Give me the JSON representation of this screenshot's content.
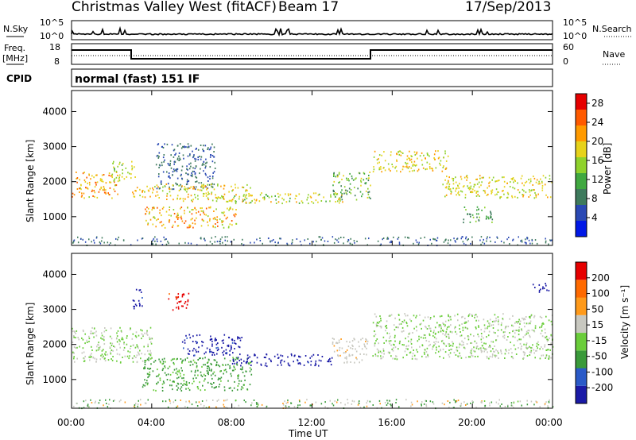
{
  "header": {
    "station": "Christmas Valley West (fitACF)",
    "beam": "Beam 17",
    "date": "17/Sep/2013"
  },
  "top_panels": {
    "nsky_label": "N.Sky",
    "nsky_ticks": [
      "10^5",
      "10^0"
    ],
    "nsearch_label": "N.Search",
    "nsearch_ticks": [
      "10^5",
      "10^0"
    ],
    "freq_label": "Freq.",
    "freq_unit": "[MHz]",
    "freq_ticks": [
      "18",
      "8"
    ],
    "nave_label": "Nave",
    "nave_ticks": [
      "60",
      "0"
    ],
    "cpid_label": "CPID",
    "cpid_value": "normal (fast) 151 IF"
  },
  "xaxis": {
    "label": "Time UT",
    "ticks": [
      "00:00",
      "04:00",
      "08:00",
      "12:00",
      "16:00",
      "20:00",
      "00:00"
    ]
  },
  "chart_data": [
    {
      "type": "heatmap",
      "title": "",
      "xlabel": "Time UT",
      "ylabel": "Slant Range [km]",
      "xlim": [
        0,
        24
      ],
      "ylim": [
        180,
        4600
      ],
      "yticks": [
        "1000",
        "2000",
        "3000",
        "4000"
      ],
      "colorbar": {
        "label": "Power [dB]",
        "ticks": [
          "4",
          "8",
          "12",
          "16",
          "20",
          "24",
          "28"
        ],
        "colors": [
          "#0018e6",
          "#2a49b4",
          "#3e7a5c",
          "#40a840",
          "#8fd22c",
          "#e6d21a",
          "#ff9a00",
          "#ff5a00",
          "#e60000"
        ],
        "range": [
          0,
          30
        ]
      },
      "bands": [
        {
          "t0": 0.0,
          "t1": 2.3,
          "r0": 1550,
          "r1": 2300,
          "v0": 16,
          "v1": 26
        },
        {
          "t0": 2.0,
          "t1": 3.2,
          "r0": 2050,
          "r1": 2600,
          "v0": 12,
          "v1": 20
        },
        {
          "t0": 3.0,
          "t1": 4.4,
          "r0": 1550,
          "r1": 1950,
          "v0": 16,
          "v1": 24
        },
        {
          "t0": 3.5,
          "t1": 8.2,
          "r0": 700,
          "r1": 1300,
          "v0": 14,
          "v1": 26
        },
        {
          "t0": 4.2,
          "t1": 7.2,
          "r0": 1800,
          "r1": 3100,
          "v0": 4,
          "v1": 10
        },
        {
          "t0": 4.5,
          "t1": 9.0,
          "r0": 1450,
          "r1": 1950,
          "v0": 14,
          "v1": 22
        },
        {
          "t0": 7.5,
          "t1": 13.6,
          "r0": 1400,
          "r1": 1700,
          "v0": 12,
          "v1": 22
        },
        {
          "t0": 13.0,
          "t1": 14.9,
          "r0": 1500,
          "r1": 2300,
          "v0": 8,
          "v1": 18
        },
        {
          "t0": 15.0,
          "t1": 18.8,
          "r0": 2300,
          "r1": 2900,
          "v0": 14,
          "v1": 22
        },
        {
          "t0": 18.5,
          "t1": 24.0,
          "r0": 1550,
          "r1": 2200,
          "v0": 14,
          "v1": 22
        },
        {
          "t0": 19.5,
          "t1": 21.0,
          "r0": 850,
          "r1": 1300,
          "v0": 8,
          "v1": 14
        }
      ]
    },
    {
      "type": "heatmap",
      "title": "",
      "xlabel": "Time UT",
      "ylabel": "Slant Range [km]",
      "xlim": [
        0,
        24
      ],
      "ylim": [
        180,
        4600
      ],
      "yticks": [
        "1000",
        "2000",
        "3000",
        "4000"
      ],
      "colorbar": {
        "label": "Velocity [m s⁻¹]",
        "ticks": [
          "200",
          "100",
          "50",
          "15",
          "-15",
          "-50",
          "-100",
          "-200"
        ],
        "colors": [
          "#1a1aa6",
          "#2a5ac8",
          "#3a9a3a",
          "#6acd3a",
          "#c8c8c0",
          "#ff9a1a",
          "#ff6a00",
          "#e60000"
        ],
        "range": [
          -250,
          250
        ]
      },
      "bands": [
        {
          "t0": 0.0,
          "t1": 4.0,
          "r0": 1500,
          "r1": 2500,
          "v": 0
        },
        {
          "t0": 3.0,
          "t1": 3.5,
          "r0": 3000,
          "r1": 3600,
          "v": -200
        },
        {
          "t0": 4.8,
          "t1": 5.9,
          "r0": 3000,
          "r1": 3500,
          "v": 200
        },
        {
          "t0": 3.5,
          "t1": 9.0,
          "r0": 700,
          "r1": 1650,
          "v": -70
        },
        {
          "t0": 5.5,
          "t1": 8.5,
          "r0": 1700,
          "r1": 2300,
          "v": -200
        },
        {
          "t0": 8.0,
          "t1": 13.0,
          "r0": 1400,
          "r1": 1750,
          "v": -200
        },
        {
          "t0": 13.0,
          "t1": 14.8,
          "r0": 1500,
          "r1": 2200,
          "v": 50
        },
        {
          "t0": 15.0,
          "t1": 24.0,
          "r0": 1600,
          "r1": 2900,
          "v": 0
        },
        {
          "t0": 23.0,
          "t1": 23.8,
          "r0": 3500,
          "r1": 3800,
          "v": -200
        }
      ]
    }
  ]
}
